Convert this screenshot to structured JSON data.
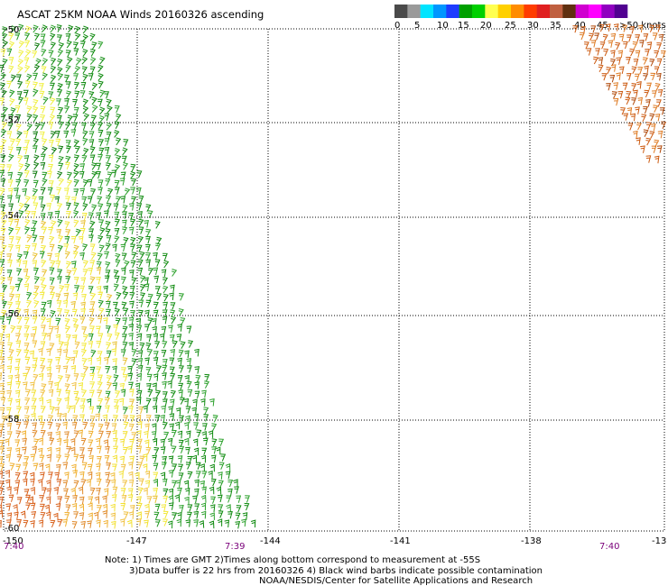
{
  "title": "ASCAT 25KM NOAA Winds 20160326 ascending",
  "legend": {
    "colors": [
      "#4a4a4a",
      "#9a9a9a",
      "#00e4ff",
      "#0096ff",
      "#1e3cff",
      "#00a000",
      "#00d000",
      "#ffff50",
      "#ffd000",
      "#ff8c00",
      "#ff3c00",
      "#e02020",
      "#c06040",
      "#603010",
      "#d000d0",
      "#ff00ff",
      "#9000c0",
      "#500090"
    ],
    "labels": [
      "0",
      "5",
      "10",
      "15",
      "20",
      "25",
      "30",
      "35",
      "40",
      "45",
      ">50 knots"
    ]
  },
  "axes": {
    "lat_labels": [
      "-50",
      "-52",
      "-54",
      "-56",
      "-58",
      "-60"
    ],
    "lon_labels": [
      "-150",
      "-147",
      "-144",
      "-141",
      "-138",
      "-13"
    ]
  },
  "times": [
    "7:40",
    "7:39",
    "7:40"
  ],
  "note": {
    "line1": "Note: 1) Times are GMT 2)Times along bottom correspond to measurement at -55S",
    "line2": "3)Data buffer is 22 hrs from 20160326 4) Black wind barbs indicate possible contamination",
    "line3": "NOAA/NESDIS/Center for Satellite Applications and Research"
  },
  "swaths": [
    {
      "name": "western-swath",
      "description_colors": [
        "#1a9e1a",
        "#0b7a0b",
        "#e8e830",
        "#f0c020",
        "#e89a20",
        "#d86018"
      ]
    },
    {
      "name": "eastern-swath",
      "description_colors": [
        "#d06010",
        "#e07820",
        "#b85010"
      ]
    }
  ]
}
